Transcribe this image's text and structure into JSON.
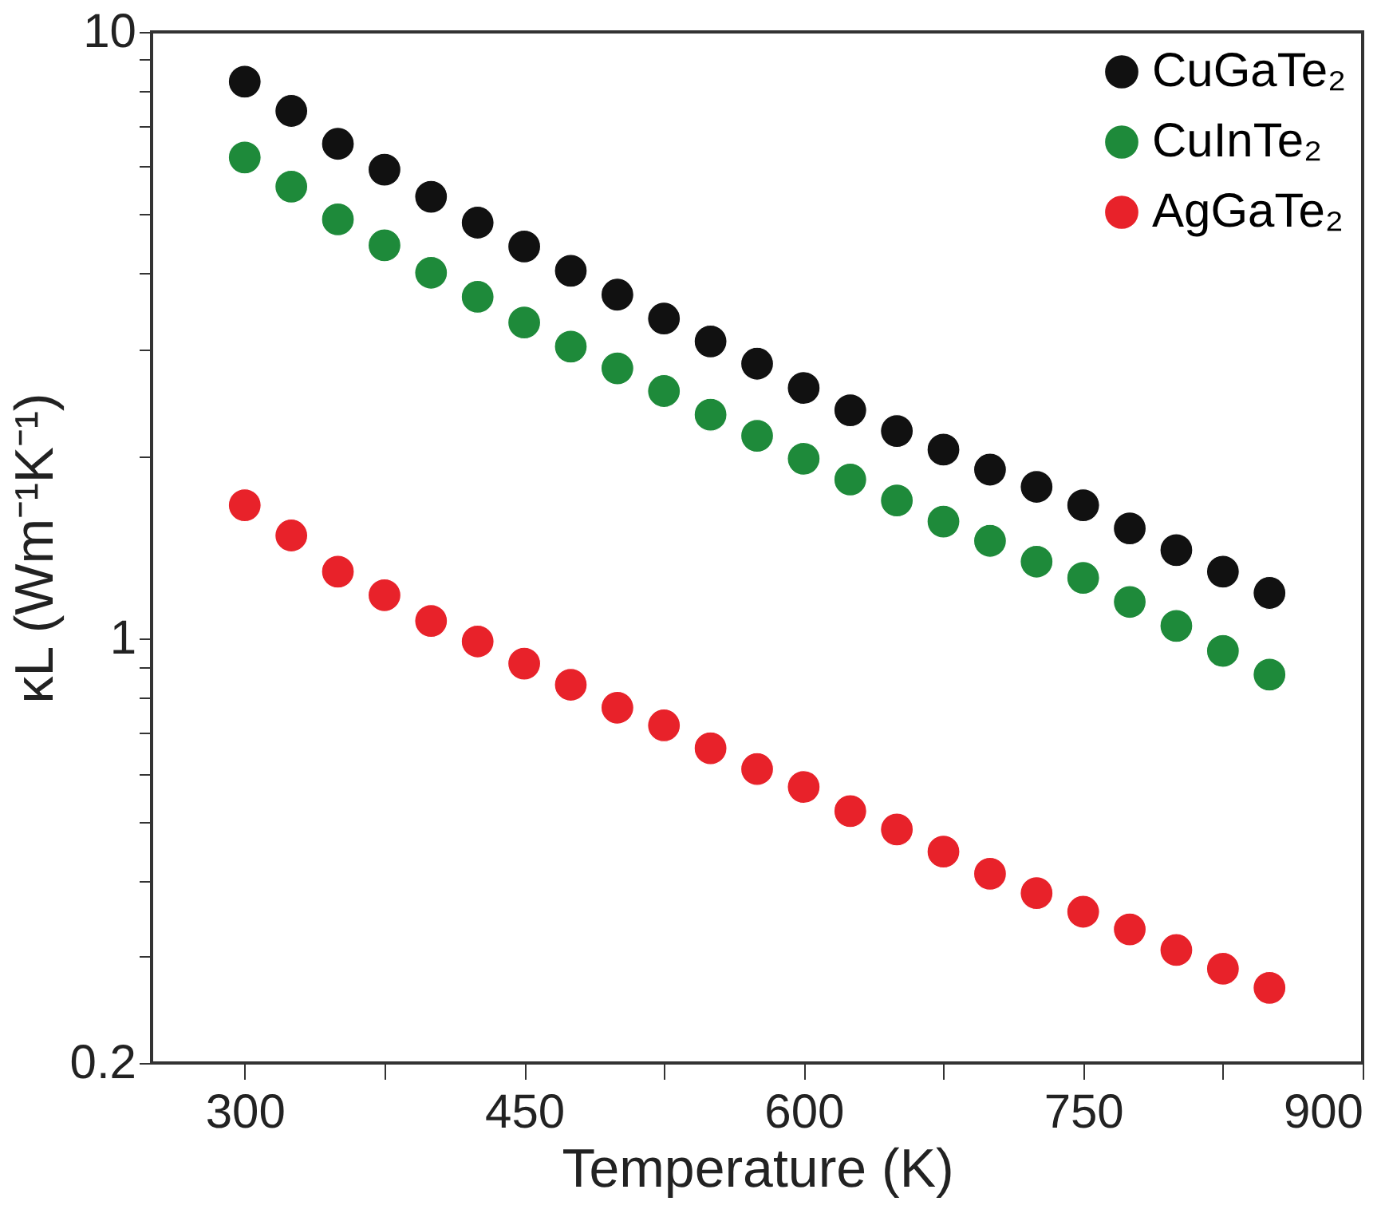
{
  "chart_data": {
    "type": "scatter",
    "xlabel": "Temperature (K)",
    "ylabel": "κL (Wm⁻¹K⁻¹)",
    "x": [
      300,
      325,
      350,
      375,
      400,
      425,
      450,
      475,
      500,
      525,
      550,
      575,
      600,
      625,
      650,
      675,
      700,
      725,
      750,
      775,
      800,
      825,
      850
    ],
    "series": [
      {
        "name": "CuGaTe₂",
        "color": "#111111",
        "values": [
          8.28,
          7.41,
          6.54,
          5.93,
          5.35,
          4.85,
          4.43,
          4.04,
          3.69,
          3.37,
          3.09,
          2.84,
          2.59,
          2.38,
          2.2,
          2.05,
          1.9,
          1.78,
          1.66,
          1.52,
          1.4,
          1.29,
          1.19
        ]
      },
      {
        "name": "CuInTe₂",
        "color": "#1e8a3a",
        "values": [
          6.21,
          5.56,
          4.91,
          4.45,
          4.01,
          3.66,
          3.32,
          3.03,
          2.79,
          2.56,
          2.34,
          2.16,
          1.98,
          1.83,
          1.69,
          1.56,
          1.45,
          1.34,
          1.26,
          1.15,
          1.05,
          0.955,
          0.873
        ]
      },
      {
        "name": "AgGaTe₂",
        "color": "#e8222a",
        "values": [
          1.66,
          1.48,
          1.29,
          1.18,
          1.07,
          0.99,
          0.91,
          0.84,
          0.77,
          0.72,
          0.66,
          0.61,
          0.57,
          0.52,
          0.485,
          0.446,
          0.41,
          0.381,
          0.355,
          0.332,
          0.307,
          0.286,
          0.266
        ]
      }
    ],
    "xlim": [
      250,
      900
    ],
    "xticks": [
      300,
      {
        "value": 375,
        "label": null
      },
      450,
      {
        "value": 525,
        "label": null
      },
      600,
      {
        "value": 675,
        "label": null
      },
      750,
      {
        "value": 825,
        "label": null
      },
      900
    ],
    "ylim": [
      0.2,
      10
    ],
    "yticks": [
      0.2,
      {
        "value": 0.3,
        "label": null
      },
      {
        "value": 0.4,
        "label": null
      },
      {
        "value": 0.5,
        "label": null
      },
      {
        "value": 0.6,
        "label": null
      },
      {
        "value": 0.7,
        "label": null
      },
      {
        "value": 0.8,
        "label": null
      },
      {
        "value": 0.9,
        "label": null
      },
      1,
      {
        "value": 2,
        "label": null
      },
      {
        "value": 3,
        "label": null
      },
      {
        "value": 4,
        "label": null
      },
      {
        "value": 5,
        "label": null
      },
      {
        "value": 6,
        "label": null
      },
      {
        "value": 7,
        "label": null
      },
      {
        "value": 8,
        "label": null
      },
      {
        "value": 9,
        "label": null
      },
      10
    ],
    "log": "y",
    "grid": false,
    "legend": "top right",
    "marker": "circle"
  }
}
